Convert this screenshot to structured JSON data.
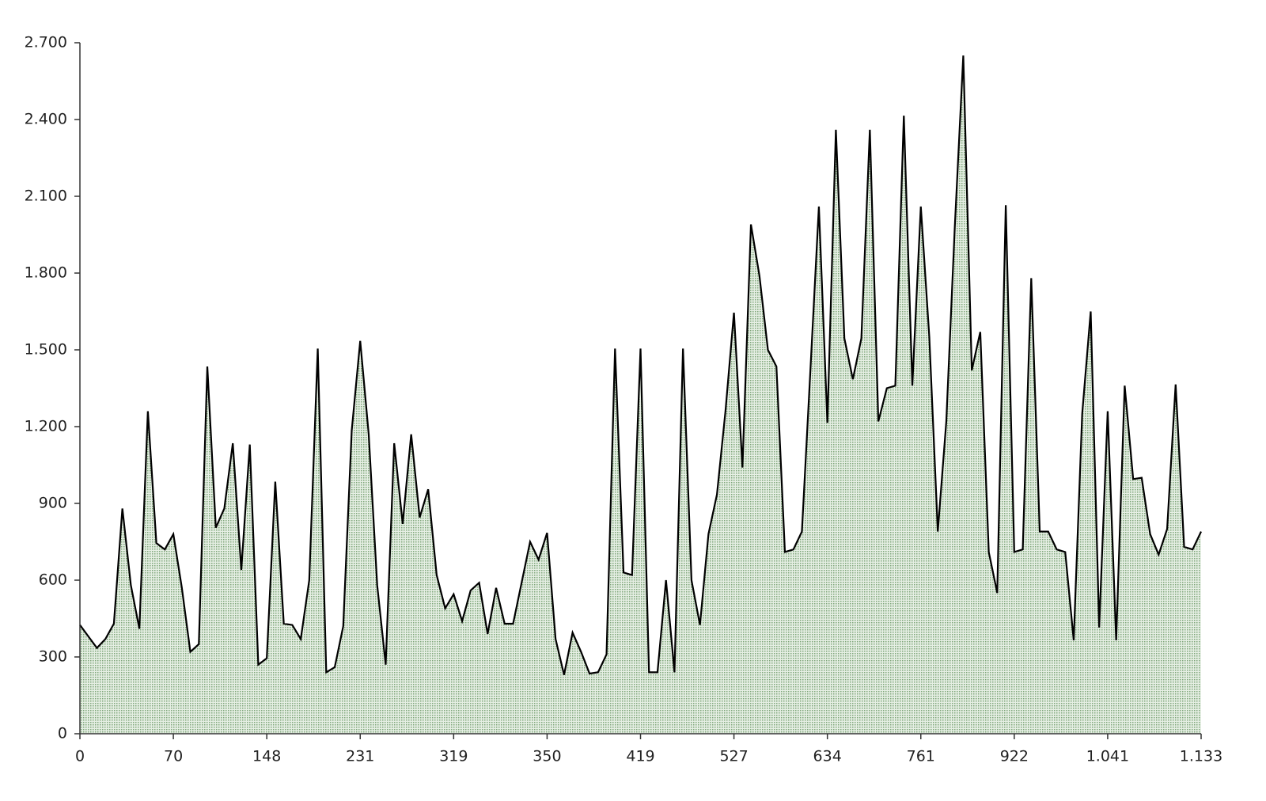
{
  "chart_data": {
    "type": "area",
    "categories": [
      "0",
      null,
      null,
      null,
      null,
      null,
      null,
      null,
      null,
      null,
      null,
      "70",
      null,
      null,
      null,
      null,
      null,
      null,
      null,
      null,
      null,
      null,
      "148",
      null,
      null,
      null,
      null,
      null,
      null,
      null,
      null,
      null,
      null,
      "231",
      null,
      null,
      null,
      null,
      null,
      null,
      null,
      null,
      null,
      null,
      "319",
      null,
      null,
      null,
      null,
      null,
      null,
      null,
      null,
      null,
      null,
      "350",
      null,
      null,
      null,
      null,
      null,
      null,
      null,
      null,
      null,
      null,
      "419",
      null,
      null,
      null,
      null,
      null,
      null,
      null,
      null,
      null,
      null,
      "527",
      null,
      null,
      null,
      null,
      null,
      null,
      null,
      null,
      null,
      null,
      "634",
      null,
      null,
      null,
      null,
      null,
      null,
      null,
      null,
      null,
      null,
      "761",
      null,
      null,
      null,
      null,
      null,
      null,
      null,
      null,
      null,
      null,
      "922",
      null,
      null,
      null,
      null,
      null,
      null,
      null,
      null,
      null,
      null,
      "1.041",
      null,
      null,
      null,
      null,
      null,
      null,
      null,
      null,
      null,
      null,
      "1.133"
    ],
    "values": [
      425,
      380,
      335,
      370,
      430,
      880,
      580,
      410,
      1260,
      745,
      720,
      780,
      570,
      320,
      350,
      1435,
      805,
      880,
      1135,
      640,
      1130,
      270,
      295,
      985,
      430,
      425,
      370,
      600,
      1505,
      240,
      260,
      420,
      1185,
      1535,
      1170,
      580,
      270,
      1135,
      820,
      1170,
      845,
      955,
      620,
      490,
      545,
      440,
      560,
      590,
      390,
      570,
      430,
      430,
      590,
      750,
      680,
      785,
      370,
      230,
      395,
      320,
      235,
      240,
      310,
      1505,
      630,
      620,
      1505,
      240,
      240,
      600,
      240,
      1505,
      600,
      425,
      780,
      935,
      1260,
      1645,
      1040,
      1990,
      1790,
      1500,
      1435,
      710,
      720,
      790,
      1420,
      2060,
      1215,
      2360,
      1545,
      1385,
      1545,
      2360,
      1220,
      1350,
      1360,
      2415,
      1360,
      2060,
      1550,
      790,
      1220,
      1980,
      2650,
      1420,
      1570,
      710,
      550,
      2065,
      710,
      720,
      1780,
      790,
      790,
      720,
      710,
      365,
      1250,
      1650,
      415,
      1260,
      365,
      1360,
      995,
      1000,
      780,
      700,
      800,
      1365,
      730,
      720,
      790
    ],
    "color": "#000000",
    "fill": "#c9dcc6",
    "ylim": [
      0,
      2700
    ],
    "yticks": [
      0,
      {
        "value": 300,
        "label": "300"
      },
      {
        "value": 600,
        "label": "600"
      },
      {
        "value": 900,
        "label": "900"
      },
      {
        "value": 1200,
        "label": "1.200"
      },
      {
        "value": 1500,
        "label": "1.500"
      },
      {
        "value": 1800,
        "label": "1.800"
      },
      {
        "value": 2100,
        "label": "2.100"
      },
      {
        "value": 2400,
        "label": "2.400"
      },
      {
        "value": 2700,
        "label": "2.700"
      }
    ]
  }
}
